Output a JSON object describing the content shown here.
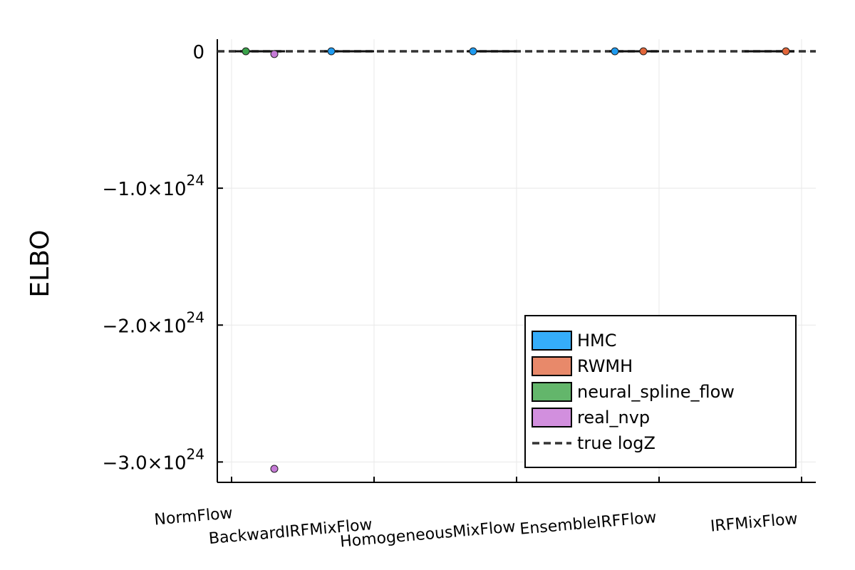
{
  "chart_data": {
    "type": "scatter",
    "ylabel": "ELBO",
    "xlabel": "",
    "categories": [
      "NormFlow",
      "BackwardIRFMixFlow",
      "HomogeneousMixFlow",
      "EnsembleIRFFlow",
      "IRFMixFlow"
    ],
    "y_ticks": [
      {
        "value": 0,
        "base": "0",
        "exp": ""
      },
      {
        "value": -1e+24,
        "base": "−1.0×10",
        "exp": "24"
      },
      {
        "value": -2e+24,
        "base": "−2.0×10",
        "exp": "24"
      },
      {
        "value": -3e+24,
        "base": "−3.0×10",
        "exp": "24"
      }
    ],
    "ylim": [
      -3.1e+24,
      1e+23
    ],
    "series": [
      {
        "name": "HMC",
        "color": "#1f9bf0",
        "points": [
          {
            "category": "BackwardIRFMixFlow",
            "y": 0
          },
          {
            "category": "HomogeneousMixFlow",
            "y": 0
          },
          {
            "category": "EnsembleIRFFlow",
            "y": 0
          }
        ]
      },
      {
        "name": "RWMH",
        "color": "#e2663a",
        "points": [
          {
            "category": "EnsembleIRFFlow",
            "y": 0
          },
          {
            "category": "IRFMixFlow",
            "y": 0
          }
        ]
      },
      {
        "name": "neural_spline_flow",
        "color": "#3aa24a",
        "points": [
          {
            "category": "NormFlow",
            "y": 0
          }
        ]
      },
      {
        "name": "real_nvp",
        "color": "#c57ad6",
        "points": [
          {
            "category": "NormFlow",
            "y": -2e+22
          },
          {
            "category": "NormFlow",
            "y": -3.05e+24
          }
        ]
      }
    ],
    "reference_line": {
      "name": "true logZ",
      "y": 0,
      "style": "dashed",
      "color": "#333333"
    },
    "legend": {
      "position": "bottom-right",
      "entries": [
        {
          "label": "HMC",
          "color": "#35adfa",
          "kind": "patch"
        },
        {
          "label": "RWMH",
          "color": "#e8896a",
          "kind": "patch"
        },
        {
          "label": "neural_spline_flow",
          "color": "#63b66b",
          "kind": "patch"
        },
        {
          "label": "real_nvp",
          "color": "#d28fde",
          "kind": "patch"
        },
        {
          "label": "true logZ",
          "color": "#333333",
          "kind": "dashed-line"
        }
      ]
    },
    "grid": true
  }
}
